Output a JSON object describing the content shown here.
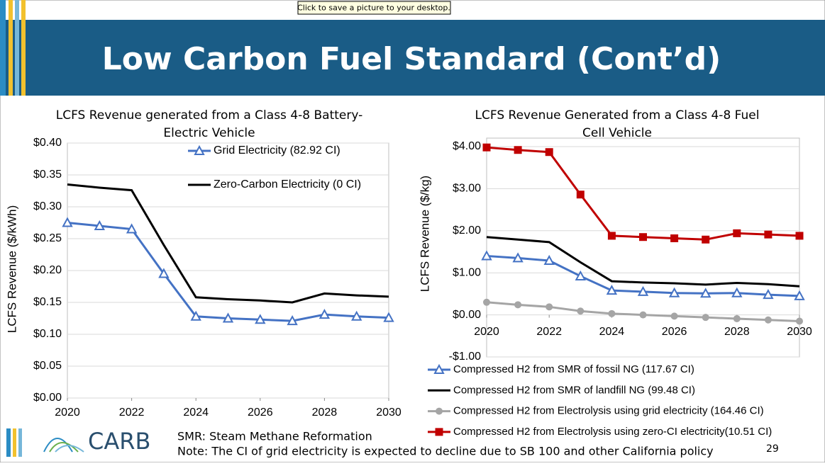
{
  "tooltip": "Click to save a picture to your desktop.",
  "slide_title": "Low Carbon Fuel Standard (Cont’d)",
  "footer": {
    "logo": "CARB",
    "note_1": "SMR: Steam Methane Reformation",
    "note_2": "Note: The CI of grid electricity is expected to decline due to SB 100 and other California policy",
    "page_number": "29"
  },
  "chart_data": [
    {
      "type": "line",
      "title": [
        "LCFS Revenue generated from a Class 4-8 Battery-",
        "Electric Vehicle"
      ],
      "y_label": "LCFS Revenue ($/kWh)",
      "x": [
        2020,
        2021,
        2022,
        2023,
        2024,
        2025,
        2026,
        2027,
        2028,
        2029,
        2030
      ],
      "xlim": [
        2020,
        2030
      ],
      "xticks": [
        2020,
        2022,
        2024,
        2026,
        2028,
        2030
      ],
      "ylim": [
        0,
        0.4
      ],
      "yticks": [
        {
          "value": 0,
          "label": "$0.00"
        },
        {
          "value": 0.05,
          "label": "$0.05"
        },
        {
          "value": 0.1,
          "label": "$0.10"
        },
        {
          "value": 0.15,
          "label": "$0.15"
        },
        {
          "value": 0.2,
          "label": "$0.20"
        },
        {
          "value": 0.25,
          "label": "$0.25"
        },
        {
          "value": 0.3,
          "label": "$0.30"
        },
        {
          "value": 0.35,
          "label": "$0.35"
        },
        {
          "value": 0.4,
          "label": "$0.40"
        }
      ],
      "grid": true,
      "legend": "inside-top",
      "series": [
        {
          "name": "Grid Electricity (82.92 CI)",
          "color": "#4472c4",
          "marker": "triangle",
          "values": [
            0.275,
            0.27,
            0.265,
            0.195,
            0.128,
            0.125,
            0.123,
            0.121,
            0.131,
            0.128,
            0.126
          ]
        },
        {
          "name": "Zero-Carbon Electricity (0 CI)",
          "color": "#000000",
          "marker": "none",
          "values": [
            0.335,
            0.33,
            0.326,
            0.24,
            0.158,
            0.155,
            0.153,
            0.15,
            0.164,
            0.161,
            0.159
          ]
        }
      ]
    },
    {
      "type": "line",
      "title": [
        "LCFS Revenue Generated from a Class 4-8 Fuel",
        "Cell Vehicle"
      ],
      "y_label": "LCFS Revenue ($/kg)",
      "x": [
        2020,
        2021,
        2022,
        2023,
        2024,
        2025,
        2026,
        2027,
        2028,
        2029,
        2030
      ],
      "xlim": [
        2020,
        2030
      ],
      "xticks": [
        2020,
        2022,
        2024,
        2026,
        2028,
        2030
      ],
      "ylim": [
        -1,
        4
      ],
      "yticks": [
        {
          "value": -1,
          "label": "-$1.00"
        },
        {
          "value": 0,
          "label": "$0.00"
        },
        {
          "value": 1,
          "label": "$1.00"
        },
        {
          "value": 2,
          "label": "$2.00"
        },
        {
          "value": 3,
          "label": "$3.00"
        },
        {
          "value": 4,
          "label": "$4.00"
        }
      ],
      "grid": true,
      "legend": "bottom",
      "series": [
        {
          "name": "Compressed H2 from SMR of fossil NG (117.67 CI)",
          "color": "#4472c4",
          "marker": "triangle",
          "values": [
            1.4,
            1.35,
            1.29,
            0.92,
            0.58,
            0.55,
            0.52,
            0.51,
            0.52,
            0.48,
            0.45
          ]
        },
        {
          "name": "Compressed H2 from SMR of landfill NG (99.48 CI)",
          "color": "#000000",
          "marker": "none",
          "values": [
            1.85,
            1.79,
            1.73,
            1.25,
            0.8,
            0.77,
            0.75,
            0.72,
            0.76,
            0.73,
            0.68
          ]
        },
        {
          "name": "Compressed H2 from Electrolysis using grid electricity (164.46 CI)",
          "color": "#a5a5a5",
          "marker": "circle",
          "values": [
            0.3,
            0.24,
            0.19,
            0.09,
            0.03,
            0.0,
            -0.03,
            -0.06,
            -0.09,
            -0.12,
            -0.15
          ]
        },
        {
          "name": "Compressed H2 from Electrolysis using zero-CI electricity(10.51 CI)",
          "color": "#c00000",
          "marker": "square",
          "values": [
            3.98,
            3.92,
            3.87,
            2.86,
            1.88,
            1.85,
            1.82,
            1.79,
            1.94,
            1.91,
            1.88
          ]
        }
      ]
    }
  ]
}
